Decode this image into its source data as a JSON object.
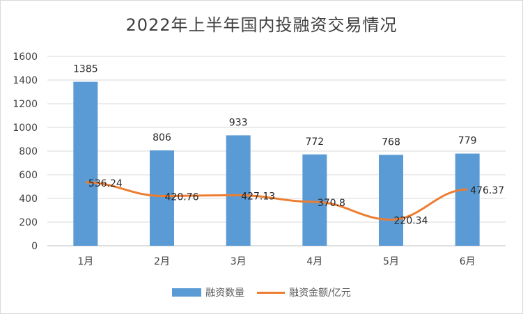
{
  "chart_data": {
    "type": "bar",
    "title": "2022年上半年国内投融资交易情况",
    "categories": [
      "1月",
      "2月",
      "3月",
      "4月",
      "5月",
      "6月"
    ],
    "ylim": [
      0,
      1600
    ],
    "yticks": [
      0,
      200,
      400,
      600,
      800,
      1000,
      1200,
      1400,
      1600
    ],
    "grid": true,
    "legend_position": "bottom",
    "series": [
      {
        "name": "融资数量",
        "type": "bar",
        "color": "#5b9bd5",
        "values": [
          1385,
          806,
          933,
          772,
          768,
          779
        ]
      },
      {
        "name": "融资金额/亿元",
        "type": "line",
        "color": "#ed7d31",
        "values": [
          536.24,
          420.76,
          427.13,
          370.8,
          220.34,
          476.37
        ]
      }
    ]
  }
}
